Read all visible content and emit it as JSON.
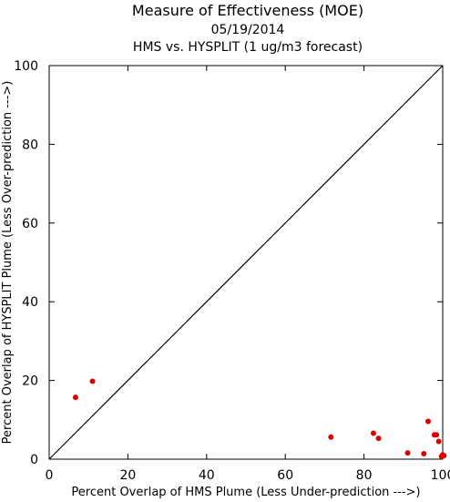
{
  "chart_data": {
    "type": "scatter",
    "title": "Measure of Effectiveness (MOE)",
    "subtitle": "05/19/2014",
    "subtitle2": "HMS vs. HYSPLIT  (1 ug/m3 forecast)",
    "xlabel": "Percent Overlap of HMS Plume (Less Under-prediction --->)",
    "ylabel": "Percent Overlap of HYSPLIT Plume (Less Over-prediction --->)",
    "xlim": [
      0,
      100
    ],
    "ylim": [
      0,
      100
    ],
    "xticks": [
      "0",
      "20",
      "40",
      "60",
      "80",
      "100"
    ],
    "yticks": [
      "0",
      "20",
      "40",
      "60",
      "80",
      "100"
    ],
    "grid": false,
    "reference_line": {
      "from": [
        0,
        0
      ],
      "to": [
        100,
        100
      ]
    },
    "point_color": "#e00000",
    "points": [
      {
        "x": 6.7,
        "y": 15.7
      },
      {
        "x": 11.0,
        "y": 19.8
      },
      {
        "x": 71.6,
        "y": 5.6
      },
      {
        "x": 82.4,
        "y": 6.6
      },
      {
        "x": 83.7,
        "y": 5.3
      },
      {
        "x": 91.1,
        "y": 1.6
      },
      {
        "x": 95.2,
        "y": 1.4
      },
      {
        "x": 96.3,
        "y": 9.6
      },
      {
        "x": 97.9,
        "y": 6.2
      },
      {
        "x": 98.4,
        "y": 6.2
      },
      {
        "x": 99.0,
        "y": 4.5
      },
      {
        "x": 99.7,
        "y": 0.7
      },
      {
        "x": 100.0,
        "y": 1.1
      },
      {
        "x": 100.3,
        "y": 0.9
      }
    ]
  }
}
